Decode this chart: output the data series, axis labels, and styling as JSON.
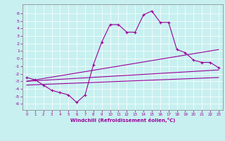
{
  "xlabel": "Windchill (Refroidissement éolien,°C)",
  "bg_color": "#c8f0f0",
  "line_color": "#990099",
  "xlim": [
    -0.5,
    23.5
  ],
  "ylim": [
    -6.8,
    7.2
  ],
  "xticks": [
    0,
    1,
    2,
    3,
    4,
    5,
    6,
    7,
    8,
    9,
    10,
    11,
    12,
    13,
    14,
    15,
    16,
    17,
    18,
    19,
    20,
    21,
    22,
    23
  ],
  "yticks": [
    -6,
    -5,
    -4,
    -3,
    -2,
    -1,
    0,
    1,
    2,
    3,
    4,
    5,
    6
  ],
  "series1_x": [
    0,
    1,
    2,
    3,
    4,
    5,
    6,
    7,
    8,
    9,
    10,
    11,
    12,
    13,
    14,
    15,
    16,
    17,
    18,
    19,
    20,
    21,
    22,
    23
  ],
  "series1_y": [
    -2.5,
    -2.8,
    -3.5,
    -4.2,
    -4.5,
    -4.8,
    -5.8,
    -4.8,
    -0.8,
    2.2,
    4.5,
    4.5,
    3.5,
    3.5,
    5.8,
    6.3,
    4.8,
    4.8,
    1.2,
    0.8,
    -0.2,
    -0.5,
    -0.5,
    -1.2
  ],
  "series2_x": [
    0,
    23
  ],
  "series2_y": [
    -3.0,
    -1.5
  ],
  "series3_x": [
    0,
    23
  ],
  "series3_y": [
    -3.0,
    1.2
  ],
  "series4_x": [
    0,
    23
  ],
  "series4_y": [
    -3.5,
    -2.5
  ],
  "marker": "+",
  "marker_size": 3,
  "line_width": 0.8
}
